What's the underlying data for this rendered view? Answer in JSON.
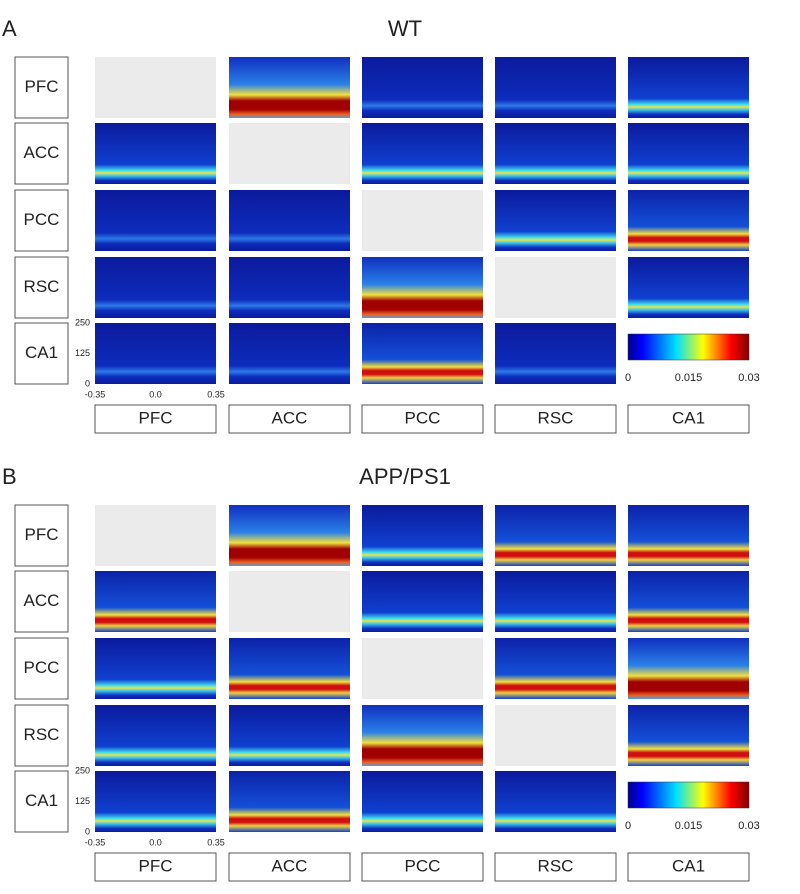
{
  "panels": [
    {
      "label": "A",
      "title": "WT",
      "row_labels": [
        "PFC",
        "ACC",
        "PCC",
        "RSC",
        "CA1"
      ],
      "column_labels": [
        "PFC",
        "ACC",
        "PCC",
        "RSC",
        "CA1"
      ],
      "x_ticks": [
        "-0.35",
        "0.0",
        "0.35"
      ],
      "y_ticks": [
        "250",
        "125",
        "0"
      ],
      "colorbar_ticks": [
        "0",
        "0.015",
        "0.03"
      ]
    },
    {
      "label": "B",
      "title": "APP/PS1",
      "row_labels": [
        "PFC",
        "ACC",
        "PCC",
        "RSC",
        "CA1"
      ],
      "column_labels": [
        "PFC",
        "ACC",
        "PCC",
        "RSC",
        "CA1"
      ],
      "x_ticks": [
        "-0.35",
        "0.0",
        "0.35"
      ],
      "y_ticks": [
        "250",
        "125",
        "0"
      ],
      "colorbar_ticks": [
        "0",
        "0.015",
        "0.03"
      ]
    }
  ]
}
